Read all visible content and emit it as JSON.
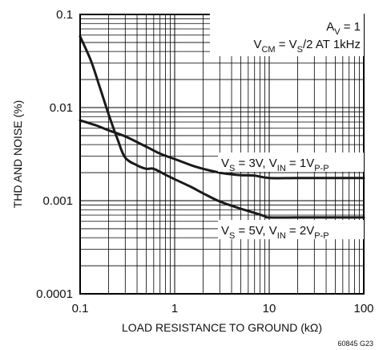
{
  "chart_data": {
    "type": "line",
    "title": "",
    "xlabel": "LOAD RESISTANCE TO GROUND (kΩ)",
    "ylabel": "THD AND NOISE (%)",
    "x_scale": "log",
    "y_scale": "log",
    "xlim": [
      0.1,
      100
    ],
    "ylim": [
      0.0001,
      0.1
    ],
    "x_ticks": [
      "0.1",
      "1",
      "10",
      "100"
    ],
    "y_ticks": [
      "0.1",
      "0.01",
      "0.001",
      "0.0001"
    ],
    "grid": true,
    "conditions": {
      "line1": {
        "main": "A",
        "sub1": "V",
        "rest1": " = 1"
      },
      "line2": {
        "p1": "V",
        "sub1": "CM",
        "p2": " = V",
        "sub2": "S",
        "p3": "/2 AT 1kHz"
      }
    },
    "series": [
      {
        "label": {
          "p1": "V",
          "sub1": "S",
          "p2": " = 3V, V",
          "sub2": "IN",
          "p3": " = 1V",
          "sub3": "P-P"
        },
        "x": [
          0.1,
          0.15,
          0.2,
          0.3,
          0.5,
          0.7,
          1,
          1.5,
          2,
          3,
          4,
          5,
          7,
          10,
          20,
          50,
          100
        ],
        "y": [
          0.0073,
          0.0064,
          0.0057,
          0.0049,
          0.0038,
          0.0032,
          0.0028,
          0.0024,
          0.0022,
          0.002,
          0.00192,
          0.00188,
          0.00186,
          0.00175,
          0.00175,
          0.00175,
          0.00175
        ]
      },
      {
        "label": {
          "p1": "V",
          "sub1": "S",
          "p2": " = 5V, V",
          "sub2": "IN",
          "p3": " = 2V",
          "sub3": "P-P"
        },
        "x": [
          0.1,
          0.13,
          0.16,
          0.2,
          0.25,
          0.3,
          0.4,
          0.5,
          0.6,
          0.8,
          1,
          1.5,
          2,
          3,
          5,
          7,
          9,
          10,
          20,
          50,
          100
        ],
        "y": [
          0.058,
          0.032,
          0.017,
          0.0085,
          0.0045,
          0.0029,
          0.0024,
          0.0022,
          0.0022,
          0.0019,
          0.0017,
          0.0014,
          0.0012,
          0.00098,
          0.00082,
          0.00074,
          0.00068,
          0.00066,
          0.00066,
          0.00066,
          0.00066
        ]
      }
    ]
  },
  "figure_id": "60845 G23"
}
